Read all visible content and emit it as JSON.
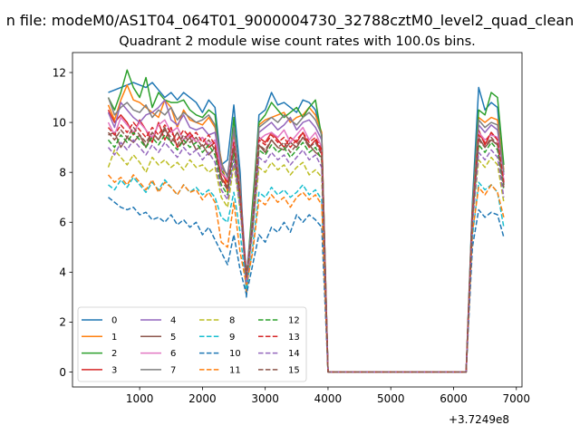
{
  "chart_data": {
    "type": "line",
    "suptitle": "n file: modeM0/AS1T04_064T01_9000004730_32788cztM0_level2_quad_clean",
    "title": "Quadrant 2 module wise count rates with 100.0s bins.",
    "xlabel": "",
    "ylabel": "",
    "x_offset_label": "+3.7249e8",
    "xlim": [
      -70,
      7090
    ],
    "ylim": [
      -0.6,
      12.8
    ],
    "xticks": [
      1000,
      2000,
      3000,
      4000,
      5000,
      6000,
      7000
    ],
    "yticks": [
      0,
      2,
      4,
      6,
      8,
      10,
      12
    ],
    "legend_position": "lower-left",
    "legend_columns": 4,
    "x": [
      500,
      600,
      700,
      800,
      900,
      1000,
      1100,
      1200,
      1300,
      1400,
      1500,
      1600,
      1700,
      1800,
      1900,
      2000,
      2100,
      2200,
      2300,
      2400,
      2500,
      2600,
      2700,
      2800,
      2900,
      3000,
      3100,
      3200,
      3300,
      3400,
      3500,
      3600,
      3700,
      3800,
      3900,
      4000,
      4100,
      4200,
      4300,
      4400,
      4500,
      4600,
      4700,
      4800,
      4900,
      5000,
      5100,
      5200,
      5300,
      5400,
      5500,
      5600,
      5700,
      5800,
      5900,
      6000,
      6100,
      6200,
      6300,
      6400,
      6500,
      6600,
      6700,
      6800
    ],
    "series": [
      {
        "name": "0",
        "color": "#1f77b4",
        "dash": "solid",
        "values": [
          11.2,
          11.3,
          11.4,
          11.5,
          11.6,
          11.5,
          11.4,
          11.6,
          11.3,
          11.0,
          11.2,
          10.9,
          11.2,
          11.0,
          10.8,
          10.4,
          10.9,
          10.6,
          8.3,
          8.5,
          10.7,
          8.0,
          3.0,
          6.2,
          10.3,
          10.5,
          11.2,
          10.7,
          10.8,
          10.6,
          10.4,
          10.9,
          10.8,
          10.5,
          9.5,
          0.0,
          0.0,
          0.0,
          0.0,
          0.0,
          0.0,
          0.0,
          0.0,
          0.0,
          0.0,
          0.0,
          0.0,
          0.0,
          0.0,
          0.0,
          0.0,
          0.0,
          0.0,
          0.0,
          0.0,
          0.0,
          0.0,
          0.0,
          6.8,
          11.4,
          10.5,
          10.8,
          10.6,
          7.5
        ]
      },
      {
        "name": "1",
        "color": "#ff7f0e",
        "dash": "solid",
        "values": [
          10.7,
          10.1,
          10.9,
          11.5,
          10.9,
          10.8,
          10.6,
          10.4,
          10.2,
          10.9,
          10.6,
          9.8,
          10.5,
          10.1,
          10.0,
          9.9,
          10.2,
          9.8,
          8.5,
          7.2,
          9.5,
          7.3,
          3.2,
          6.0,
          9.9,
          10.1,
          10.2,
          10.3,
          10.4,
          10.0,
          10.2,
          10.3,
          10.6,
          10.3,
          9.6,
          0.0,
          0.0,
          0.0,
          0.0,
          0.0,
          0.0,
          0.0,
          0.0,
          0.0,
          0.0,
          0.0,
          0.0,
          0.0,
          0.0,
          0.0,
          0.0,
          0.0,
          0.0,
          0.0,
          0.0,
          0.0,
          0.0,
          0.0,
          6.5,
          10.2,
          10.0,
          10.2,
          10.1,
          8.1
        ]
      },
      {
        "name": "2",
        "color": "#2ca02c",
        "dash": "solid",
        "values": [
          11.0,
          10.5,
          11.2,
          12.1,
          11.4,
          11.0,
          11.8,
          10.6,
          11.2,
          10.9,
          10.8,
          10.8,
          10.9,
          10.5,
          10.3,
          10.2,
          10.5,
          10.3,
          8.1,
          7.6,
          10.2,
          7.2,
          3.7,
          6.8,
          10.0,
          10.3,
          10.8,
          10.5,
          10.2,
          10.4,
          10.6,
          10.2,
          10.6,
          10.9,
          9.4,
          0.0,
          0.0,
          0.0,
          0.0,
          0.0,
          0.0,
          0.0,
          0.0,
          0.0,
          0.0,
          0.0,
          0.0,
          0.0,
          0.0,
          0.0,
          0.0,
          0.0,
          0.0,
          0.0,
          0.0,
          0.0,
          0.0,
          0.0,
          6.6,
          10.5,
          10.3,
          11.2,
          11.0,
          8.3
        ]
      },
      {
        "name": "3",
        "color": "#d62728",
        "dash": "solid",
        "values": [
          10.5,
          10.0,
          10.3,
          10.0,
          9.5,
          10.1,
          9.7,
          9.2,
          10.0,
          9.3,
          9.8,
          9.0,
          9.3,
          9.6,
          9.2,
          9.4,
          9.0,
          9.2,
          8.0,
          7.6,
          9.2,
          7.0,
          3.5,
          6.1,
          9.4,
          9.2,
          9.6,
          9.3,
          9.0,
          9.4,
          9.2,
          9.6,
          9.0,
          9.3,
          8.8,
          0.0,
          0.0,
          0.0,
          0.0,
          0.0,
          0.0,
          0.0,
          0.0,
          0.0,
          0.0,
          0.0,
          0.0,
          0.0,
          0.0,
          0.0,
          0.0,
          0.0,
          0.0,
          0.0,
          0.0,
          0.0,
          0.0,
          0.0,
          6.3,
          9.7,
          9.1,
          9.6,
          9.3,
          7.6
        ]
      },
      {
        "name": "4",
        "color": "#9467bd",
        "dash": "solid",
        "values": [
          10.4,
          9.8,
          10.8,
          10.5,
          10.2,
          10.0,
          10.3,
          10.4,
          10.6,
          10.9,
          10.1,
          9.9,
          10.3,
          9.8,
          9.7,
          9.8,
          9.5,
          9.6,
          8.2,
          7.9,
          9.7,
          7.5,
          3.9,
          6.3,
          9.6,
          9.8,
          10.0,
          9.7,
          9.9,
          10.2,
          9.7,
          10.0,
          10.1,
          9.8,
          9.3,
          0.0,
          0.0,
          0.0,
          0.0,
          0.0,
          0.0,
          0.0,
          0.0,
          0.0,
          0.0,
          0.0,
          0.0,
          0.0,
          0.0,
          0.0,
          0.0,
          0.0,
          0.0,
          0.0,
          0.0,
          0.0,
          0.0,
          0.0,
          6.4,
          9.9,
          9.6,
          9.9,
          9.7,
          7.9
        ]
      },
      {
        "name": "5",
        "color": "#8c564b",
        "dash": "solid",
        "values": [
          9.5,
          9.6,
          9.0,
          9.4,
          9.2,
          9.5,
          9.0,
          9.6,
          9.3,
          9.8,
          9.2,
          9.6,
          9.1,
          9.4,
          8.9,
          9.1,
          8.7,
          9.0,
          7.8,
          7.4,
          9.0,
          6.9,
          3.6,
          5.9,
          9.1,
          8.8,
          9.3,
          9.0,
          8.9,
          9.2,
          9.0,
          9.4,
          9.1,
          8.8,
          8.6,
          0.0,
          0.0,
          0.0,
          0.0,
          0.0,
          0.0,
          0.0,
          0.0,
          0.0,
          0.0,
          0.0,
          0.0,
          0.0,
          0.0,
          0.0,
          0.0,
          0.0,
          0.0,
          0.0,
          0.0,
          0.0,
          0.0,
          0.0,
          6.2,
          9.4,
          9.0,
          9.3,
          9.1,
          7.5
        ]
      },
      {
        "name": "6",
        "color": "#e377c2",
        "dash": "solid",
        "values": [
          10.0,
          9.5,
          10.2,
          9.9,
          9.6,
          10.0,
          9.7,
          9.4,
          9.9,
          10.1,
          9.6,
          9.8,
          9.3,
          9.5,
          9.2,
          9.4,
          9.1,
          9.3,
          8.0,
          7.7,
          9.3,
          7.2,
          3.8,
          6.0,
          9.3,
          9.5,
          9.6,
          9.4,
          9.7,
          9.2,
          9.5,
          9.8,
          9.3,
          9.6,
          9.0,
          0.0,
          0.0,
          0.0,
          0.0,
          0.0,
          0.0,
          0.0,
          0.0,
          0.0,
          0.0,
          0.0,
          0.0,
          0.0,
          0.0,
          0.0,
          0.0,
          0.0,
          0.0,
          0.0,
          0.0,
          0.0,
          0.0,
          0.0,
          6.3,
          9.6,
          9.3,
          9.5,
          9.4,
          7.7
        ]
      },
      {
        "name": "7",
        "color": "#7f7f7f",
        "dash": "solid",
        "values": [
          11.0,
          10.3,
          10.6,
          10.8,
          10.5,
          10.4,
          10.7,
          10.2,
          10.5,
          10.3,
          10.6,
          10.1,
          10.4,
          10.2,
          10.0,
          10.1,
          10.3,
          9.9,
          8.4,
          7.8,
          9.8,
          7.6,
          3.4,
          6.4,
          9.8,
          10.0,
          10.2,
          10.0,
          10.3,
          10.1,
          9.9,
          10.2,
          10.4,
          10.1,
          9.5,
          0.0,
          0.0,
          0.0,
          0.0,
          0.0,
          0.0,
          0.0,
          0.0,
          0.0,
          0.0,
          0.0,
          0.0,
          0.0,
          0.0,
          0.0,
          0.0,
          0.0,
          0.0,
          0.0,
          0.0,
          0.0,
          0.0,
          0.0,
          6.6,
          10.1,
          9.8,
          10.0,
          9.9,
          8.0
        ]
      },
      {
        "name": "8",
        "color": "#bcbd22",
        "dash": "dashed",
        "values": [
          8.2,
          8.9,
          8.6,
          8.3,
          8.7,
          8.4,
          8.0,
          8.6,
          8.3,
          8.5,
          8.2,
          8.4,
          8.1,
          8.5,
          8.2,
          8.3,
          8.0,
          8.2,
          7.0,
          6.6,
          8.3,
          6.5,
          3.8,
          5.7,
          8.2,
          8.0,
          8.4,
          8.1,
          8.3,
          7.9,
          8.2,
          8.4,
          7.9,
          8.1,
          7.8,
          0.0,
          0.0,
          0.0,
          0.0,
          0.0,
          0.0,
          0.0,
          0.0,
          0.0,
          0.0,
          0.0,
          0.0,
          0.0,
          0.0,
          0.0,
          0.0,
          0.0,
          0.0,
          0.0,
          0.0,
          0.0,
          0.0,
          0.0,
          6.0,
          8.5,
          8.2,
          8.6,
          8.3,
          6.8
        ]
      },
      {
        "name": "9",
        "color": "#17becf",
        "dash": "dashed",
        "values": [
          7.5,
          7.3,
          7.7,
          7.4,
          7.8,
          7.5,
          7.2,
          7.6,
          7.3,
          7.7,
          7.4,
          7.1,
          7.5,
          7.2,
          7.4,
          7.1,
          7.3,
          7.0,
          6.2,
          6.0,
          7.2,
          5.6,
          3.3,
          5.0,
          7.2,
          7.0,
          7.4,
          7.1,
          7.3,
          7.0,
          7.2,
          7.5,
          7.1,
          7.3,
          6.9,
          0.0,
          0.0,
          0.0,
          0.0,
          0.0,
          0.0,
          0.0,
          0.0,
          0.0,
          0.0,
          0.0,
          0.0,
          0.0,
          0.0,
          0.0,
          0.0,
          0.0,
          0.0,
          0.0,
          0.0,
          0.0,
          0.0,
          0.0,
          5.4,
          7.6,
          7.3,
          7.5,
          7.2,
          5.8
        ]
      },
      {
        "name": "10",
        "color": "#1f77b4",
        "dash": "dashed",
        "values": [
          7.0,
          6.8,
          6.6,
          6.5,
          6.6,
          6.3,
          6.4,
          6.1,
          6.2,
          6.0,
          6.3,
          5.9,
          6.1,
          5.8,
          6.0,
          5.5,
          5.8,
          5.3,
          4.8,
          4.3,
          5.5,
          4.1,
          3.1,
          4.3,
          5.5,
          5.2,
          5.8,
          5.6,
          6.0,
          5.6,
          6.3,
          6.0,
          6.3,
          6.1,
          5.8,
          0.0,
          0.0,
          0.0,
          0.0,
          0.0,
          0.0,
          0.0,
          0.0,
          0.0,
          0.0,
          0.0,
          0.0,
          0.0,
          0.0,
          0.0,
          0.0,
          0.0,
          0.0,
          0.0,
          0.0,
          0.0,
          0.0,
          0.0,
          5.0,
          6.5,
          6.2,
          6.4,
          6.3,
          5.4
        ]
      },
      {
        "name": "11",
        "color": "#ff7f0e",
        "dash": "dashed",
        "values": [
          7.9,
          7.6,
          7.8,
          7.5,
          7.9,
          7.6,
          7.3,
          7.7,
          7.2,
          7.6,
          7.4,
          7.1,
          7.5,
          7.2,
          7.3,
          6.9,
          7.2,
          6.8,
          5.2,
          5.0,
          6.8,
          4.8,
          3.5,
          4.8,
          6.9,
          6.7,
          7.1,
          6.8,
          7.0,
          6.6,
          7.0,
          7.2,
          6.9,
          7.1,
          6.7,
          0.0,
          0.0,
          0.0,
          0.0,
          0.0,
          0.0,
          0.0,
          0.0,
          0.0,
          0.0,
          0.0,
          0.0,
          0.0,
          0.0,
          0.0,
          0.0,
          0.0,
          0.0,
          0.0,
          0.0,
          0.0,
          0.0,
          0.0,
          5.6,
          7.4,
          7.1,
          7.5,
          7.2,
          6.2
        ]
      },
      {
        "name": "12",
        "color": "#2ca02c",
        "dash": "dashed",
        "values": [
          9.3,
          9.0,
          9.5,
          9.2,
          9.6,
          9.3,
          9.0,
          9.4,
          9.1,
          9.5,
          9.2,
          8.9,
          9.3,
          9.0,
          9.2,
          8.8,
          9.1,
          8.7,
          7.5,
          7.1,
          8.8,
          6.8,
          3.9,
          5.8,
          8.9,
          8.7,
          9.1,
          8.8,
          9.0,
          8.6,
          8.9,
          9.2,
          8.8,
          9.0,
          8.5,
          0.0,
          0.0,
          0.0,
          0.0,
          0.0,
          0.0,
          0.0,
          0.0,
          0.0,
          0.0,
          0.0,
          0.0,
          0.0,
          0.0,
          0.0,
          0.0,
          0.0,
          0.0,
          0.0,
          0.0,
          0.0,
          0.0,
          0.0,
          6.1,
          9.1,
          8.8,
          9.2,
          8.9,
          7.3
        ]
      },
      {
        "name": "13",
        "color": "#d62728",
        "dash": "dashed",
        "values": [
          9.8,
          9.5,
          9.9,
          9.6,
          10.0,
          9.7,
          9.4,
          9.8,
          9.5,
          9.9,
          9.6,
          9.3,
          9.7,
          9.4,
          9.6,
          9.2,
          9.5,
          9.1,
          7.8,
          7.4,
          9.2,
          7.1,
          3.7,
          6.0,
          9.3,
          9.1,
          9.5,
          9.2,
          9.4,
          9.0,
          9.3,
          9.6,
          9.2,
          9.4,
          8.9,
          0.0,
          0.0,
          0.0,
          0.0,
          0.0,
          0.0,
          0.0,
          0.0,
          0.0,
          0.0,
          0.0,
          0.0,
          0.0,
          0.0,
          0.0,
          0.0,
          0.0,
          0.0,
          0.0,
          0.0,
          0.0,
          0.0,
          0.0,
          6.3,
          9.5,
          9.2,
          9.6,
          9.3,
          7.6
        ]
      },
      {
        "name": "14",
        "color": "#9467bd",
        "dash": "dashed",
        "values": [
          9.0,
          8.7,
          9.2,
          8.9,
          9.3,
          9.0,
          8.7,
          9.1,
          8.8,
          9.2,
          8.9,
          8.6,
          9.0,
          8.7,
          8.9,
          8.5,
          8.8,
          8.4,
          7.3,
          6.9,
          8.5,
          6.6,
          3.6,
          5.6,
          8.6,
          8.4,
          8.8,
          8.5,
          8.7,
          8.3,
          8.6,
          8.9,
          8.5,
          8.7,
          8.2,
          0.0,
          0.0,
          0.0,
          0.0,
          0.0,
          0.0,
          0.0,
          0.0,
          0.0,
          0.0,
          0.0,
          0.0,
          0.0,
          0.0,
          0.0,
          0.0,
          0.0,
          0.0,
          0.0,
          0.0,
          0.0,
          0.0,
          0.0,
          5.9,
          8.8,
          8.5,
          8.9,
          8.6,
          7.0
        ]
      },
      {
        "name": "15",
        "color": "#8c564b",
        "dash": "dashed",
        "values": [
          9.6,
          9.3,
          9.7,
          9.4,
          9.8,
          9.5,
          9.2,
          9.6,
          9.3,
          9.7,
          9.4,
          9.1,
          9.5,
          9.2,
          9.4,
          9.0,
          9.3,
          8.9,
          7.7,
          7.3,
          9.0,
          7.0,
          3.8,
          5.9,
          9.1,
          8.9,
          9.3,
          9.0,
          9.2,
          8.8,
          9.1,
          9.4,
          9.0,
          9.2,
          8.7,
          0.0,
          0.0,
          0.0,
          0.0,
          0.0,
          0.0,
          0.0,
          0.0,
          0.0,
          0.0,
          0.0,
          0.0,
          0.0,
          0.0,
          0.0,
          0.0,
          0.0,
          0.0,
          0.0,
          0.0,
          0.0,
          0.0,
          0.0,
          6.2,
          9.3,
          9.0,
          9.4,
          9.1,
          7.4
        ]
      }
    ]
  }
}
